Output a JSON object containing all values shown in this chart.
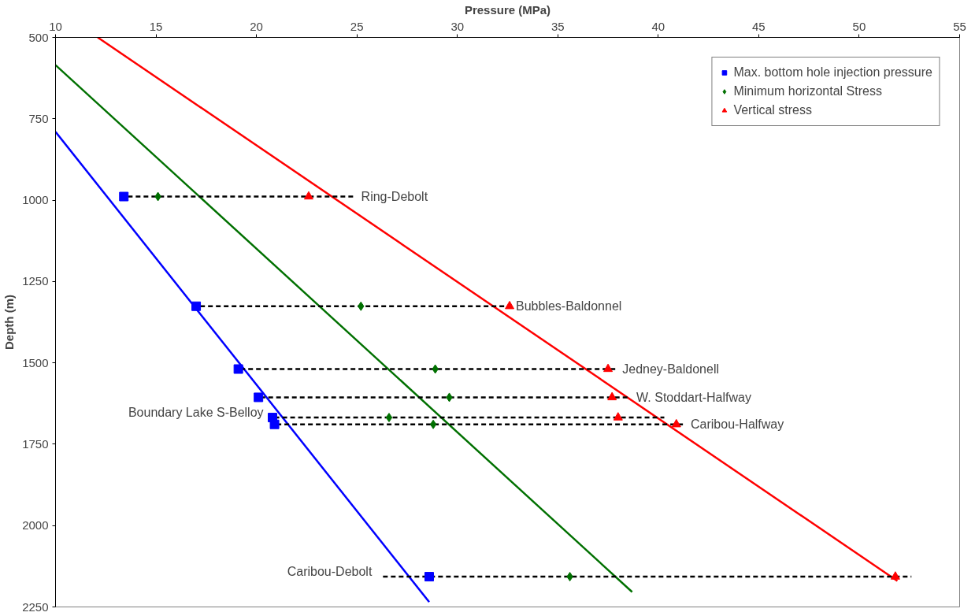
{
  "chart_data": {
    "type": "scatter",
    "xlabel": "Pressure (MPa)",
    "ylabel": "Depth (m)",
    "xlim": [
      10,
      55
    ],
    "xticks": [
      10,
      15,
      20,
      25,
      30,
      35,
      40,
      45,
      50,
      55
    ],
    "ylim": [
      2250,
      500
    ],
    "yticks": [
      500,
      750,
      1000,
      1250,
      1500,
      1750,
      2000,
      2250
    ],
    "grid": false,
    "legend": "top right",
    "series": [
      {
        "type": "line",
        "color": "#0000ff",
        "line_style": "solid",
        "x": [
          10,
          28.6
        ],
        "values": [
          790,
          2235
        ]
      },
      {
        "type": "line",
        "color": "#007000",
        "line_style": "solid",
        "x": [
          10,
          38.7
        ],
        "values": [
          585,
          2204
        ]
      },
      {
        "type": "line",
        "color": "#ff0000",
        "line_style": "solid",
        "x": [
          12.1,
          51.9
        ],
        "values": [
          500,
          2170
        ]
      },
      {
        "type": "line",
        "color": "#000000",
        "line_style": "dashed",
        "x": [
          13.6,
          24.9
        ],
        "values": [
          989,
          989
        ]
      },
      {
        "type": "line",
        "color": "#000000",
        "line_style": "dashed",
        "x": [
          17.2,
          32.6
        ],
        "values": [
          1326,
          1326
        ]
      },
      {
        "type": "line",
        "color": "#000000",
        "line_style": "dashed",
        "x": [
          19.2,
          37.9
        ],
        "values": [
          1519,
          1519
        ]
      },
      {
        "type": "line",
        "color": "#000000",
        "line_style": "dashed",
        "x": [
          20.2,
          38.6
        ],
        "values": [
          1606,
          1606
        ]
      },
      {
        "type": "line",
        "color": "#000000",
        "line_style": "dashed",
        "x": [
          20.9,
          40.3
        ],
        "values": [
          1668,
          1668
        ]
      },
      {
        "type": "line",
        "color": "#000000",
        "line_style": "dashed",
        "x": [
          21.0,
          41.3
        ],
        "values": [
          1689,
          1689
        ]
      },
      {
        "type": "line",
        "color": "#000000",
        "line_style": "dashed",
        "x": [
          26.3,
          52.6
        ],
        "values": [
          2157,
          2157
        ]
      },
      {
        "name": "Max. bottom hole injection pressure",
        "color": "#0000ff",
        "marker": "square",
        "x": [
          13.4,
          17.0,
          19.1,
          20.1,
          20.8,
          20.9,
          28.6
        ],
        "values": [
          989,
          1326,
          1519,
          1606,
          1668,
          1689,
          2157
        ]
      },
      {
        "name": "Minimum horizontal Stress",
        "color": "#007000",
        "marker": "diamond",
        "x": [
          15.1,
          25.2,
          28.9,
          29.6,
          26.6,
          28.8,
          35.6
        ],
        "values": [
          989,
          1326,
          1519,
          1606,
          1668,
          1689,
          2157
        ]
      },
      {
        "name": "Vertical stress",
        "color": "#ff0000",
        "marker": "triangle",
        "x": [
          22.6,
          32.6,
          37.5,
          37.7,
          38.0,
          40.9,
          51.8
        ],
        "values": [
          989,
          1326,
          1519,
          1606,
          1668,
          1689,
          2157
        ]
      }
    ],
    "annotations": [
      {
        "text": "Ring-Debolt",
        "x": 24.9,
        "y": 989
      },
      {
        "text": "Bubbles-Baldonnel",
        "x": 32.6,
        "y": 1326
      },
      {
        "text": "Jedney-Baldonell",
        "x": 37.9,
        "y": 1519
      },
      {
        "text": "W. Stoddart-Halfway",
        "x": 38.6,
        "y": 1606
      },
      {
        "text": "Boundary Lake S-Belloy",
        "x": 20.9,
        "y": 1668
      },
      {
        "text": "Caribou-Halfway",
        "x": 41.3,
        "y": 1689
      },
      {
        "text": "Caribou-Debolt",
        "x": 26.3,
        "y": 2157
      }
    ]
  }
}
